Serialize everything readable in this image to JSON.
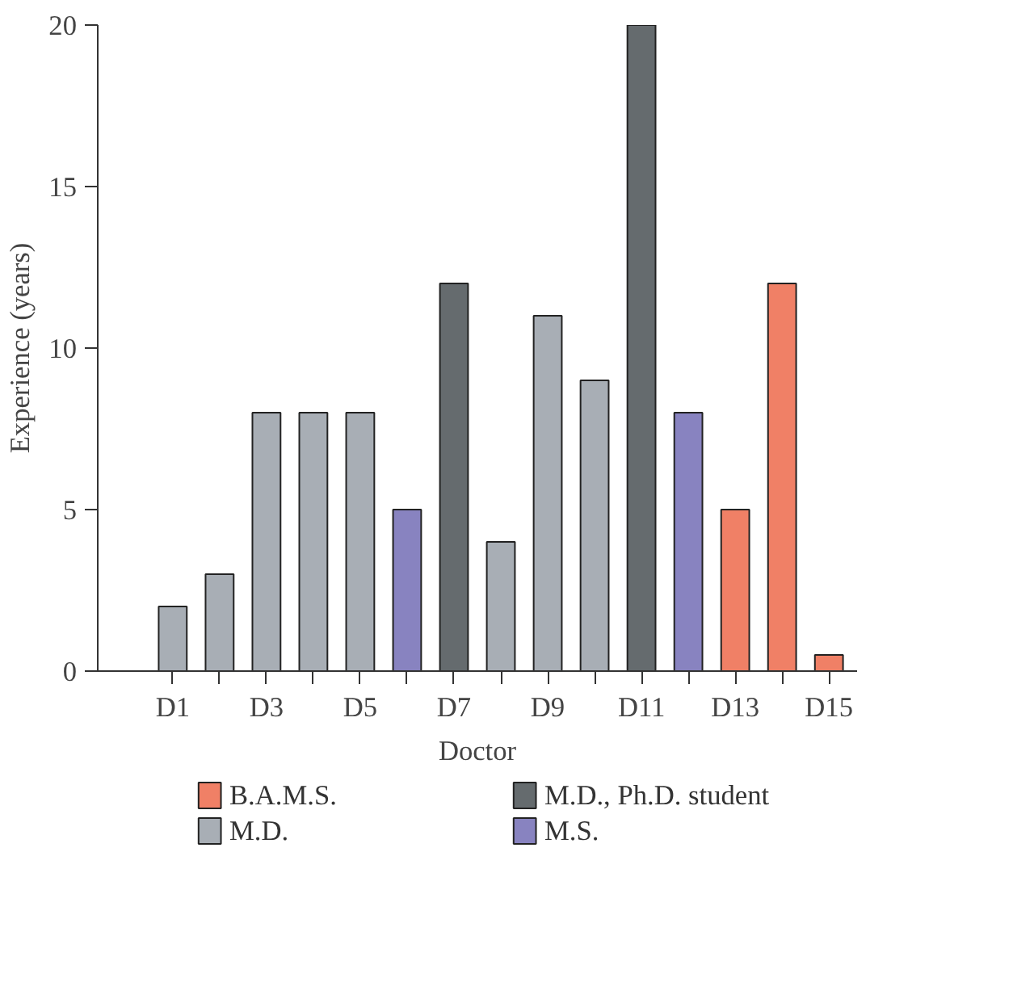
{
  "chart_data": {
    "type": "bar",
    "xlabel": "Doctor",
    "ylabel": "Experience (years)",
    "categories": [
      "D1",
      null,
      "D3",
      null,
      "D5",
      null,
      "D7",
      null,
      "D9",
      null,
      "D11",
      null,
      "D13",
      null,
      "D15"
    ],
    "series": [
      {
        "name": "B.A.M.S.",
        "color": "#f08066",
        "values": [
          null,
          null,
          null,
          null,
          null,
          null,
          null,
          null,
          null,
          null,
          null,
          null,
          5,
          12,
          0.5
        ]
      },
      {
        "name": "M.D.",
        "color": "#a8aeb5",
        "values": [
          2,
          3,
          8,
          8,
          8,
          null,
          null,
          4,
          11,
          9,
          null,
          null,
          null,
          null,
          null
        ]
      },
      {
        "name": "M.D., Ph.D. student",
        "color": "#656b6e",
        "values": [
          null,
          null,
          null,
          null,
          null,
          null,
          12,
          null,
          null,
          null,
          20,
          null,
          null,
          null,
          null
        ]
      },
      {
        "name": "M.S.",
        "color": "#8883c0",
        "values": [
          null,
          null,
          null,
          null,
          null,
          5,
          null,
          null,
          null,
          null,
          null,
          8,
          null,
          null,
          null
        ]
      }
    ],
    "ylim": [
      0,
      20
    ],
    "yticks": [
      0,
      5,
      10,
      15,
      20
    ],
    "grid": false,
    "legend": "bottom"
  }
}
